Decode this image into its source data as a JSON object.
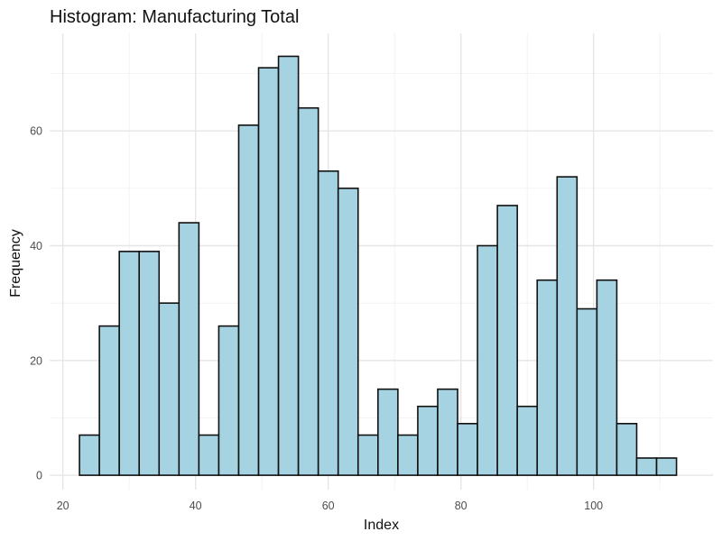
{
  "chart_data": {
    "type": "bar",
    "title": "Histogram: Manufacturing Total",
    "xlabel": "Index",
    "ylabel": "Frequency",
    "bin_width": 3,
    "bins": [
      {
        "x0": 22.5,
        "x1": 25.5,
        "count": 7
      },
      {
        "x0": 25.5,
        "x1": 28.5,
        "count": 26
      },
      {
        "x0": 28.5,
        "x1": 31.5,
        "count": 39
      },
      {
        "x0": 31.5,
        "x1": 34.5,
        "count": 39
      },
      {
        "x0": 34.5,
        "x1": 37.5,
        "count": 30
      },
      {
        "x0": 37.5,
        "x1": 40.5,
        "count": 44
      },
      {
        "x0": 40.5,
        "x1": 43.5,
        "count": 7
      },
      {
        "x0": 43.5,
        "x1": 46.5,
        "count": 26
      },
      {
        "x0": 46.5,
        "x1": 49.5,
        "count": 61
      },
      {
        "x0": 49.5,
        "x1": 52.5,
        "count": 71
      },
      {
        "x0": 52.5,
        "x1": 55.5,
        "count": 73
      },
      {
        "x0": 55.5,
        "x1": 58.5,
        "count": 64
      },
      {
        "x0": 58.5,
        "x1": 61.5,
        "count": 53
      },
      {
        "x0": 61.5,
        "x1": 64.5,
        "count": 50
      },
      {
        "x0": 64.5,
        "x1": 67.5,
        "count": 7
      },
      {
        "x0": 67.5,
        "x1": 70.5,
        "count": 15
      },
      {
        "x0": 70.5,
        "x1": 73.5,
        "count": 7
      },
      {
        "x0": 73.5,
        "x1": 76.5,
        "count": 12
      },
      {
        "x0": 76.5,
        "x1": 79.5,
        "count": 15
      },
      {
        "x0": 79.5,
        "x1": 82.5,
        "count": 9
      },
      {
        "x0": 82.5,
        "x1": 85.5,
        "count": 40
      },
      {
        "x0": 85.5,
        "x1": 88.5,
        "count": 47
      },
      {
        "x0": 88.5,
        "x1": 91.5,
        "count": 12
      },
      {
        "x0": 91.5,
        "x1": 94.5,
        "count": 34
      },
      {
        "x0": 94.5,
        "x1": 97.5,
        "count": 52
      },
      {
        "x0": 97.5,
        "x1": 100.5,
        "count": 29
      },
      {
        "x0": 100.5,
        "x1": 103.5,
        "count": 34
      },
      {
        "x0": 103.5,
        "x1": 106.5,
        "count": 9
      },
      {
        "x0": 106.5,
        "x1": 109.5,
        "count": 3
      },
      {
        "x0": 109.5,
        "x1": 112.5,
        "count": 3
      }
    ],
    "xlim": [
      18,
      118
    ],
    "ylim": [
      -2.5,
      77
    ],
    "x_ticks": [
      20,
      40,
      60,
      80,
      100
    ],
    "y_ticks": [
      0,
      20,
      40,
      60
    ],
    "x_tick_labels": [
      "20",
      "40",
      "60",
      "80",
      "100"
    ],
    "y_tick_labels": [
      "0",
      "20",
      "40",
      "60"
    ],
    "grid": true,
    "legend": "none",
    "colors": {
      "bar_fill": "#a6d3e2",
      "bar_outline": "#111111",
      "background": "#ffffff",
      "grid_major": "#e6e6e6",
      "grid_minor": "#f2f2f2"
    }
  }
}
